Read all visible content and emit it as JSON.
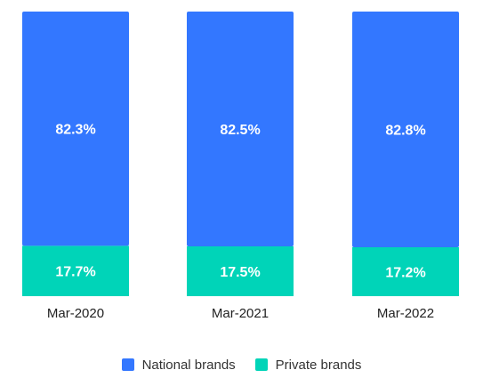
{
  "chart_data": {
    "type": "bar",
    "stacked": true,
    "percent": true,
    "categories": [
      "Mar-2020",
      "Mar-2021",
      "Mar-2022"
    ],
    "series": [
      {
        "name": "National brands",
        "values": [
          82.3,
          82.5,
          82.8
        ],
        "labels": [
          "82.3%",
          "82.5%",
          "82.8%"
        ],
        "color": "#3377FF"
      },
      {
        "name": "Private brands",
        "values": [
          17.7,
          17.5,
          17.2
        ],
        "labels": [
          "17.7%",
          "17.5%",
          "17.2%"
        ],
        "color": "#00D4B8"
      }
    ],
    "ylim": [
      0,
      100
    ],
    "grid": false,
    "legend": "bottom"
  }
}
